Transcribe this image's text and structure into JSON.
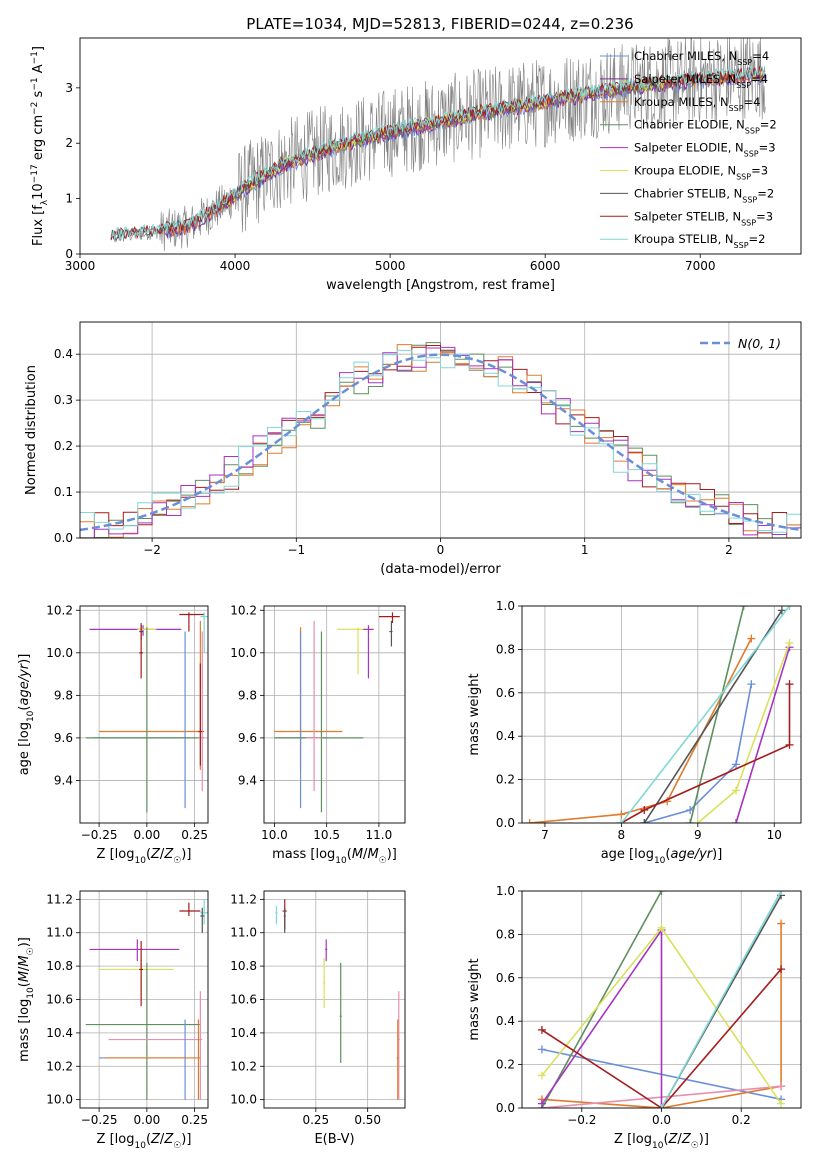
{
  "figure_title": "PLATE=1034, MJD=52813, FIBERID=0244, z=0.236",
  "colors": {
    "Chabrier MILES": "#6a8fd9",
    "Salpeter MILES": "#7b2f8f",
    "Kroupa MILES": "#e07b2c",
    "Chabrier ELODIE": "#5e8f5e",
    "Salpeter ELODIE": "#a633c1",
    "Kroupa ELODIE": "#d8e25a",
    "Chabrier STELIB": "#555555",
    "Salpeter STELIB": "#a51c1c",
    "Kroupa STELIB": "#80d8d8",
    "pink": "#e68fb1",
    "data": "#808080"
  },
  "chart_data": [
    {
      "id": "spectrum",
      "type": "line",
      "title": "PLATE=1034, MJD=52813, FIBERID=0244, z=0.236",
      "xlabel": "wavelength [Angstrom, rest frame]",
      "ylabel": "Flux [fλ 10⁻¹⁷ erg cm⁻² s⁻¹ A⁻¹]",
      "xlim": [
        3000,
        7650
      ],
      "ylim": [
        0,
        3.9
      ],
      "xticks": [
        3000,
        4000,
        5000,
        6000,
        7000
      ],
      "yticks": [
        0,
        1,
        2,
        3
      ],
      "grid": false,
      "legend": "right",
      "legend_entries": [
        {
          "label": "Chabrier MILES, N",
          "sub": "SSP",
          "tail": "=4"
        },
        {
          "label": "Salpeter MILES, N",
          "sub": "SSP",
          "tail": "=4"
        },
        {
          "label": "Kroupa MILES, N",
          "sub": "SSP",
          "tail": "=4"
        },
        {
          "label": "Chabrier ELODIE, N",
          "sub": "SSP",
          "tail": "=2"
        },
        {
          "label": "Salpeter ELODIE, N",
          "sub": "SSP",
          "tail": "=3"
        },
        {
          "label": "Kroupa ELODIE, N",
          "sub": "SSP",
          "tail": "=3"
        },
        {
          "label": "Chabrier STELIB, N",
          "sub": "SSP",
          "tail": "=2"
        },
        {
          "label": "Salpeter STELIB, N",
          "sub": "SSP",
          "tail": "=3"
        },
        {
          "label": "Kroupa STELIB, N",
          "sub": "SSP",
          "tail": "=2"
        }
      ],
      "continuum": [
        [
          3200,
          0.3
        ],
        [
          3500,
          0.4
        ],
        [
          3700,
          0.5
        ],
        [
          3900,
          0.85
        ],
        [
          4100,
          1.25
        ],
        [
          4300,
          1.6
        ],
        [
          4600,
          1.9
        ],
        [
          5000,
          2.2
        ],
        [
          5500,
          2.5
        ],
        [
          6000,
          2.75
        ],
        [
          6500,
          3.0
        ],
        [
          7000,
          3.15
        ],
        [
          7400,
          3.25
        ]
      ]
    },
    {
      "id": "residuals",
      "type": "histogram",
      "xlabel": "(data-model)/error",
      "ylabel": "Normed distribution",
      "xlim": [
        -2.5,
        2.5
      ],
      "ylim": [
        0,
        0.47
      ],
      "xticks": [
        -2,
        -1,
        0,
        1,
        2
      ],
      "yticks": [
        0.0,
        0.1,
        0.2,
        0.3,
        0.4
      ],
      "grid": true,
      "legend": "top-right",
      "legend_label": "N(0, 1)"
    },
    {
      "id": "z-age",
      "type": "errorbar",
      "xlabel": "Z [log10(Z/Z☉)]",
      "ylabel": "age [log10(age/yr)]",
      "xlim": [
        -0.35,
        0.32
      ],
      "ylim": [
        9.2,
        10.22
      ],
      "xticks": [
        -0.25,
        0.0,
        0.25
      ],
      "yticks": [
        9.4,
        9.6,
        9.8,
        10.0,
        10.2
      ],
      "grid": true
    },
    {
      "id": "mass-age",
      "type": "errorbar",
      "xlabel": "mass [log10(M/M☉)]",
      "ylabel": "",
      "xlim": [
        9.9,
        11.25
      ],
      "ylim": [
        9.2,
        10.22
      ],
      "xticks": [
        10.0,
        10.5,
        11.0
      ],
      "yticks": [
        9.4,
        9.6,
        9.8,
        10.0,
        10.2
      ],
      "grid": true
    },
    {
      "id": "age-weight",
      "type": "line",
      "xlabel": "age [log10(age/yr)]",
      "ylabel": "mass weight",
      "xlim": [
        6.7,
        10.35
      ],
      "ylim": [
        0,
        1.0
      ],
      "xticks": [
        7,
        8,
        9,
        10
      ],
      "yticks": [
        0.0,
        0.2,
        0.4,
        0.6,
        0.8,
        1.0
      ],
      "grid": true
    },
    {
      "id": "z-mass",
      "type": "errorbar",
      "xlabel": "Z [log10(Z/Z☉)]",
      "ylabel": "mass [log10(M/M☉)]",
      "xlim": [
        -0.35,
        0.32
      ],
      "ylim": [
        9.95,
        11.25
      ],
      "xticks": [
        -0.25,
        0.0,
        0.25
      ],
      "yticks": [
        10.0,
        10.2,
        10.4,
        10.6,
        10.8,
        11.0,
        11.2
      ],
      "grid": true
    },
    {
      "id": "ebv-mass",
      "type": "errorbar",
      "xlabel": "E(B-V)",
      "ylabel": "",
      "xlim": [
        0.0,
        0.68
      ],
      "ylim": [
        9.95,
        11.25
      ],
      "xticks": [
        0.25,
        0.5
      ],
      "yticks": [
        10.0,
        10.2,
        10.4,
        10.6,
        10.8,
        11.0,
        11.2
      ],
      "grid": true
    },
    {
      "id": "z-weight",
      "type": "line",
      "xlabel": "Z [log10(Z/Z☉)]",
      "ylabel": "mass weight",
      "xlim": [
        -0.35,
        0.35
      ],
      "ylim": [
        0,
        1.0
      ],
      "xticks": [
        -0.2,
        0.0,
        0.2
      ],
      "yticks": [
        0.0,
        0.2,
        0.4,
        0.6,
        0.8,
        1.0
      ],
      "grid": true
    }
  ],
  "series_data": {
    "hist_models": [
      "Chabrier ELODIE",
      "Salpeter STELIB",
      "Kroupa MILES",
      "Salpeter ELODIE",
      "Kroupa STELIB"
    ],
    "age_weight": {
      "Chabrier MILES": [
        [
          8.3,
          0.0
        ],
        [
          8.9,
          0.06
        ],
        [
          9.5,
          0.27
        ],
        [
          9.7,
          0.64
        ]
      ],
      "Kroupa MILES": [
        [
          6.8,
          0.0
        ],
        [
          8.0,
          0.04
        ],
        [
          8.6,
          0.1
        ],
        [
          9.7,
          0.85
        ]
      ],
      "Chabrier ELODIE": [
        [
          8.9,
          0.0
        ],
        [
          9.6,
          1.0
        ]
      ],
      "Salpeter ELODIE": [
        [
          9.5,
          0.0
        ],
        [
          10.2,
          0.81
        ]
      ],
      "Kroupa ELODIE": [
        [
          9.0,
          0.0
        ],
        [
          9.5,
          0.15
        ],
        [
          10.2,
          0.83
        ]
      ],
      "Chabrier STELIB": [
        [
          8.3,
          0.0
        ],
        [
          10.1,
          0.98
        ]
      ],
      "Salpeter STELIB": [
        [
          8.0,
          0.0
        ],
        [
          8.3,
          0.06
        ],
        [
          10.2,
          0.36
        ],
        [
          10.2,
          0.64
        ]
      ],
      "Kroupa STELIB": [
        [
          8.0,
          0.0
        ],
        [
          10.2,
          1.0
        ]
      ]
    },
    "z_weight": {
      "Chabrier MILES": [
        [
          -0.3,
          0.27
        ],
        [
          0.3,
          0.04
        ]
      ],
      "Kroupa MILES": [
        [
          -0.3,
          0.04
        ],
        [
          0.0,
          0.0
        ],
        [
          0.3,
          0.1
        ],
        [
          0.3,
          0.85
        ]
      ],
      "pink": [
        [
          -0.3,
          0.0
        ],
        [
          0.3,
          0.1
        ]
      ],
      "Chabrier ELODIE": [
        [
          -0.3,
          0.0
        ],
        [
          0.0,
          1.0
        ]
      ],
      "Salpeter ELODIE": [
        [
          -0.3,
          0.02
        ],
        [
          0.0,
          0.82
        ],
        [
          0.0,
          0.0
        ]
      ],
      "Kroupa ELODIE": [
        [
          -0.3,
          0.15
        ],
        [
          0.0,
          0.83
        ],
        [
          0.3,
          0.02
        ]
      ],
      "Chabrier STELIB": [
        [
          0.0,
          0.0
        ],
        [
          0.3,
          0.98
        ]
      ],
      "Salpeter STELIB": [
        [
          -0.3,
          0.36
        ],
        [
          0.0,
          0.0
        ],
        [
          0.3,
          0.64
        ]
      ],
      "Kroupa STELIB": [
        [
          0.0,
          0.0
        ],
        [
          0.3,
          1.0
        ]
      ]
    },
    "z_age": [
      {
        "c": "Salpeter STELIB",
        "x": 0.22,
        "y": 10.18,
        "xl": 0.17,
        "xh": 0.3,
        "yl": 10.1,
        "yh": 10.19
      },
      {
        "c": "Kroupa STELIB",
        "x": 0.3,
        "y": 10.17,
        "xl": 0.28,
        "xh": 0.32,
        "yl": 10.0,
        "yh": 10.19
      },
      {
        "c": "Salpeter ELODIE",
        "x": -0.02,
        "y": 10.11,
        "xl": -0.3,
        "xh": 0.18,
        "yl": 10.08,
        "yh": 10.13
      },
      {
        "c": "Kroupa ELODIE",
        "x": 0.0,
        "y": 10.11,
        "xl": -0.05,
        "xh": 0.05,
        "yl": 10.05,
        "yh": 10.14
      },
      {
        "c": "Chabrier STELIB",
        "x": -0.03,
        "y": 10.1,
        "xl": -0.04,
        "xh": -0.02,
        "yl": 10.06,
        "yh": 10.14
      },
      {
        "c": "Salpeter STELIB",
        "x": -0.03,
        "y": 10.0,
        "xl": -0.04,
        "xh": -0.02,
        "yl": 9.88,
        "yh": 10.13
      },
      {
        "c": "Kroupa MILES",
        "x": 0.28,
        "y": 9.63,
        "xl": -0.25,
        "xh": 0.3,
        "yl": 9.45,
        "yh": 10.15
      },
      {
        "c": "Chabrier MILES",
        "x": 0.2,
        "y": 9.6,
        "xl": -0.28,
        "xh": 0.22,
        "yl": 9.27,
        "yh": 10.1
      },
      {
        "c": "Chabrier ELODIE",
        "x": 0.0,
        "y": 9.6,
        "xl": -0.32,
        "xh": 0.3,
        "yl": 9.25,
        "yh": 10.12
      },
      {
        "c": "pink",
        "x": 0.29,
        "y": 9.6,
        "xl": 0.27,
        "xh": 0.3,
        "yl": 9.35,
        "yh": 10.1
      },
      {
        "c": "Salpeter STELIB",
        "x": 0.28,
        "y": 9.63,
        "xl": 0.27,
        "xh": 0.29,
        "yl": 9.47,
        "yh": 9.95
      }
    ],
    "mass_age": [
      {
        "c": "Salpeter STELIB",
        "x": 11.13,
        "y": 10.17,
        "xl": 11.0,
        "xh": 11.2,
        "yl": 10.14,
        "yh": 10.19
      },
      {
        "c": "Chabrier STELIB",
        "x": 11.12,
        "y": 10.1,
        "xl": 11.1,
        "xh": 11.13,
        "yl": 10.03,
        "yh": 10.15
      },
      {
        "c": "Kroupa ELODIE",
        "x": 10.8,
        "y": 10.11,
        "xl": 10.6,
        "xh": 10.95,
        "yl": 9.9,
        "yh": 10.12
      },
      {
        "c": "Salpeter ELODIE",
        "x": 10.9,
        "y": 10.11,
        "xl": 10.85,
        "xh": 10.95,
        "yl": 9.88,
        "yh": 10.13
      },
      {
        "c": "Kroupa MILES",
        "x": 10.25,
        "y": 9.63,
        "xl": 10.0,
        "xh": 10.65,
        "yl": 9.45,
        "yh": 10.12
      },
      {
        "c": "Chabrier MILES",
        "x": 10.25,
        "y": 9.6,
        "xl": 10.0,
        "xh": 10.5,
        "yl": 9.27,
        "yh": 10.1
      },
      {
        "c": "Chabrier ELODIE",
        "x": 10.45,
        "y": 9.6,
        "xl": 10.0,
        "xh": 10.85,
        "yl": 9.25,
        "yh": 10.1
      },
      {
        "c": "pink",
        "x": 10.38,
        "y": 9.6,
        "xl": 10.3,
        "xh": 10.45,
        "yl": 9.35,
        "yh": 10.15
      }
    ],
    "z_mass": [
      {
        "c": "Salpeter STELIB",
        "x": 0.22,
        "y": 11.13,
        "xl": 0.17,
        "xh": 0.28,
        "yl": 11.1,
        "yh": 11.18
      },
      {
        "c": "Kroupa STELIB",
        "x": 0.3,
        "y": 11.12,
        "xl": 0.28,
        "xh": 0.32,
        "yl": 11.05,
        "yh": 11.2
      },
      {
        "c": "Chabrier STELIB",
        "x": 0.29,
        "y": 11.1,
        "xl": 0.28,
        "xh": 0.3,
        "yl": 11.0,
        "yh": 11.15
      },
      {
        "c": "Salpeter ELODIE",
        "x": -0.05,
        "y": 10.9,
        "xl": -0.3,
        "xh": 0.17,
        "yl": 10.83,
        "yh": 10.96
      },
      {
        "c": "Kroupa ELODIE",
        "x": -0.03,
        "y": 10.78,
        "xl": -0.25,
        "xh": 0.14,
        "yl": 10.6,
        "yh": 10.85
      },
      {
        "c": "Salpeter STELIB",
        "x": -0.03,
        "y": 10.78,
        "xl": -0.04,
        "xh": -0.02,
        "yl": 10.56,
        "yh": 10.95
      },
      {
        "c": "Chabrier ELODIE",
        "x": 0.0,
        "y": 10.45,
        "xl": -0.32,
        "xh": 0.28,
        "yl": 10.0,
        "yh": 10.82
      },
      {
        "c": "pink",
        "x": 0.28,
        "y": 10.36,
        "xl": -0.2,
        "xh": 0.29,
        "yl": 10.0,
        "yh": 10.65
      },
      {
        "c": "Chabrier MILES",
        "x": 0.2,
        "y": 10.25,
        "xl": -0.25,
        "xh": 0.21,
        "yl": 10.0,
        "yh": 10.48
      },
      {
        "c": "Kroupa MILES",
        "x": 0.27,
        "y": 10.25,
        "xl": -0.22,
        "xh": 0.28,
        "yl": 10.0,
        "yh": 10.48
      }
    ],
    "ebv_mass": [
      {
        "c": "Salpeter STELIB",
        "x": 0.1,
        "y": 11.13,
        "xl": 0.09,
        "xh": 0.11,
        "yl": 11.02,
        "yh": 11.2
      },
      {
        "c": "Kroupa STELIB",
        "x": 0.06,
        "y": 11.12,
        "xl": 0.055,
        "xh": 0.065,
        "yl": 11.05,
        "yh": 11.16
      },
      {
        "c": "Chabrier STELIB",
        "x": 0.1,
        "y": 11.1,
        "xl": 0.095,
        "xh": 0.105,
        "yl": 11.0,
        "yh": 11.15
      },
      {
        "c": "Salpeter ELODIE",
        "x": 0.3,
        "y": 10.9,
        "xl": 0.295,
        "xh": 0.305,
        "yl": 10.83,
        "yh": 10.96
      },
      {
        "c": "Kroupa ELODIE",
        "x": 0.29,
        "y": 10.7,
        "xl": 0.285,
        "xh": 0.295,
        "yl": 10.55,
        "yh": 10.85
      },
      {
        "c": "Chabrier ELODIE",
        "x": 0.37,
        "y": 10.5,
        "xl": 0.365,
        "xh": 0.375,
        "yl": 10.22,
        "yh": 10.82
      },
      {
        "c": "pink",
        "x": 0.65,
        "y": 10.36,
        "xl": 0.645,
        "xh": 0.655,
        "yl": 10.0,
        "yh": 10.65
      },
      {
        "c": "Kroupa MILES",
        "x": 0.645,
        "y": 10.25,
        "xl": 0.64,
        "xh": 0.65,
        "yl": 10.0,
        "yh": 10.48
      }
    ]
  }
}
